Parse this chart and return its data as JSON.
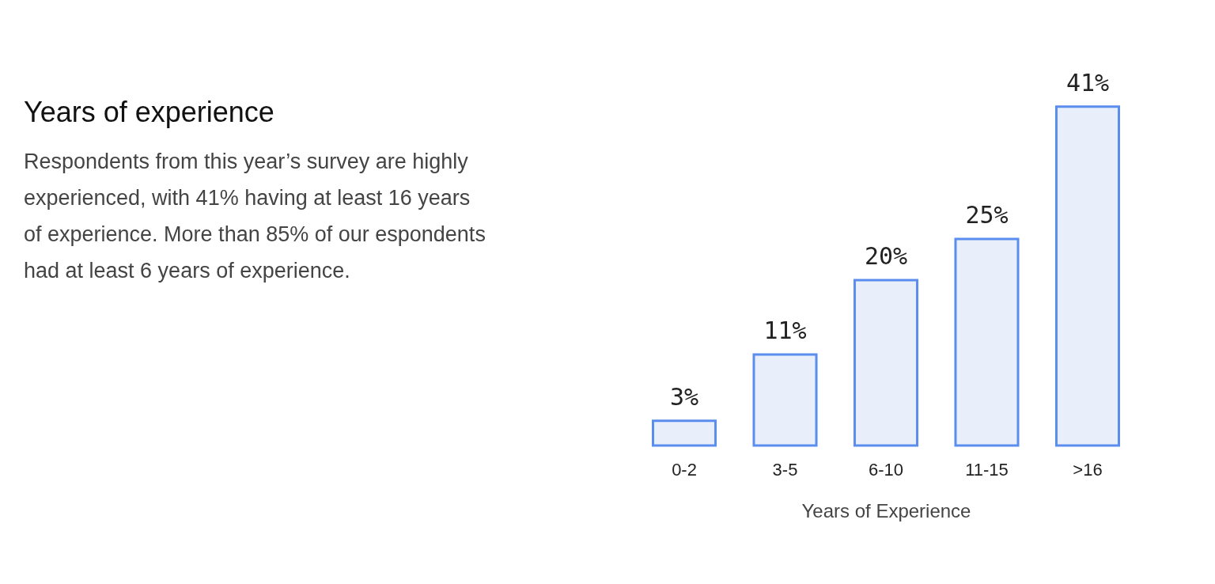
{
  "chart_data": {
    "type": "bar",
    "title": "Years of experience",
    "subtitle": "Respondents from this year’s survey are highly experienced, with 41% having at least 16 years of experience. More than 85% of our espondents had at least 6 years of experience.",
    "categories": [
      "0-2",
      "3-5",
      "6-10",
      "11-15",
      ">16"
    ],
    "color": "#5b8def",
    "values": [
      3,
      11,
      20,
      25,
      41
    ],
    "value_labels": [
      "3%",
      "11%",
      "20%",
      "25%",
      "41%"
    ],
    "xlabel": "Years of Experience",
    "tick_labels": "x",
    "grid": false
  }
}
